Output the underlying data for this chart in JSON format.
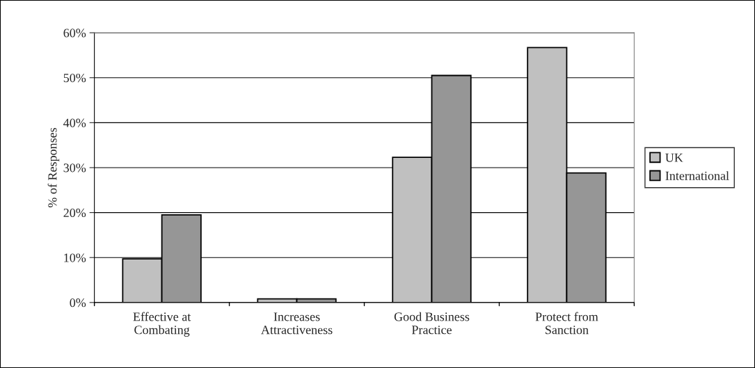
{
  "chart_data": {
    "type": "bar",
    "ylabel": "% of Responses",
    "categories": [
      "Effective at\nCombating",
      "Increases\nAttractiveness",
      "Good Business\nPractice",
      "Protect from\nSanction"
    ],
    "series": [
      {
        "name": "UK",
        "color": "#c0c0c0",
        "values": [
          9.7,
          0.8,
          32.3,
          56.7
        ]
      },
      {
        "name": "International",
        "color": "#969696",
        "values": [
          19.5,
          0.8,
          50.5,
          28.8
        ]
      }
    ],
    "ylim": [
      0,
      60
    ],
    "yticks": [
      {
        "value": 0,
        "label": "0%"
      },
      {
        "value": 10,
        "label": "10%"
      },
      {
        "value": 20,
        "label": "20%"
      },
      {
        "value": 30,
        "label": "30%"
      },
      {
        "value": 40,
        "label": "40%"
      },
      {
        "value": 50,
        "label": "50%"
      },
      {
        "value": 60,
        "label": "60%"
      }
    ],
    "grid": "y",
    "legend": "right"
  }
}
